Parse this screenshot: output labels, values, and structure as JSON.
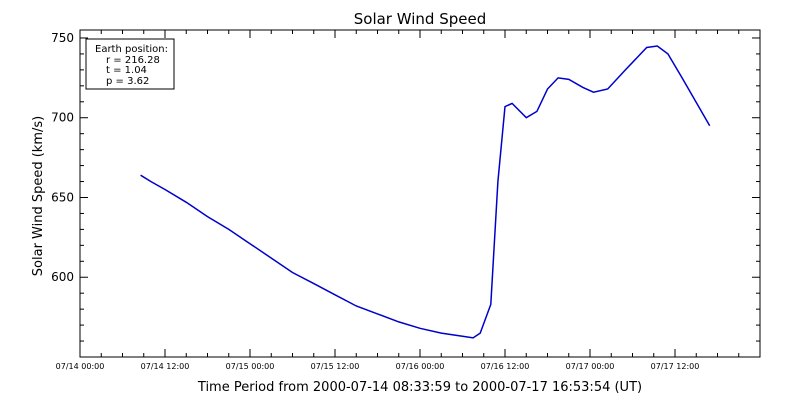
{
  "chart_data": {
    "type": "line",
    "title": "Solar Wind Speed",
    "xlabel": "Time Period from 2000-07-14 08:33:59 to 2000-07-17 16:53:54 (UT)",
    "ylabel": "Solar Wind Speed (km/s)",
    "ylim": [
      550,
      755
    ],
    "xlim": [
      "2000-07-14 00:00",
      "2000-07-18 00:00"
    ],
    "y_ticks": [
      600,
      650,
      700,
      750
    ],
    "x_ticks": [
      "07/14 00:00",
      "07/14 12:00",
      "07/15 00:00",
      "07/15 12:00",
      "07/16 00:00",
      "07/16 12:00",
      "07/17 00:00",
      "07/17 12:00"
    ],
    "grid": false,
    "legend_box": {
      "lines": [
        "Earth position:",
        "r = 216.28",
        "t = 1.04",
        "p = 3.62"
      ],
      "placement": "top-left"
    },
    "series": [
      {
        "color": "#0000cc",
        "x": [
          "2000-07-14 08:33",
          "2000-07-14 10:00",
          "2000-07-14 12:00",
          "2000-07-14 15:00",
          "2000-07-14 18:00",
          "2000-07-14 21:00",
          "2000-07-15 00:00",
          "2000-07-15 03:00",
          "2000-07-15 06:00",
          "2000-07-15 09:00",
          "2000-07-15 12:00",
          "2000-07-15 15:00",
          "2000-07-15 18:00",
          "2000-07-15 21:00",
          "2000-07-16 00:00",
          "2000-07-16 03:00",
          "2000-07-16 06:00",
          "2000-07-16 07:30",
          "2000-07-16 08:30",
          "2000-07-16 10:00",
          "2000-07-16 11:00",
          "2000-07-16 12:00",
          "2000-07-16 13:00",
          "2000-07-16 15:00",
          "2000-07-16 16:30",
          "2000-07-16 18:00",
          "2000-07-16 19:30",
          "2000-07-16 21:00",
          "2000-07-16 23:00",
          "2000-07-17 00:30",
          "2000-07-17 02:30",
          "2000-07-17 05:00",
          "2000-07-17 08:00",
          "2000-07-17 09:30",
          "2000-07-17 11:00",
          "2000-07-17 13:00",
          "2000-07-17 16:54"
        ],
        "y": [
          664,
          660,
          655,
          647,
          638,
          630,
          621,
          612,
          603,
          596,
          589,
          582,
          577,
          572,
          568,
          565,
          563,
          562,
          565,
          583,
          660,
          707,
          709,
          700,
          704,
          718,
          725,
          724,
          719,
          716,
          718,
          730,
          744,
          745,
          740,
          725,
          695
        ]
      }
    ]
  }
}
